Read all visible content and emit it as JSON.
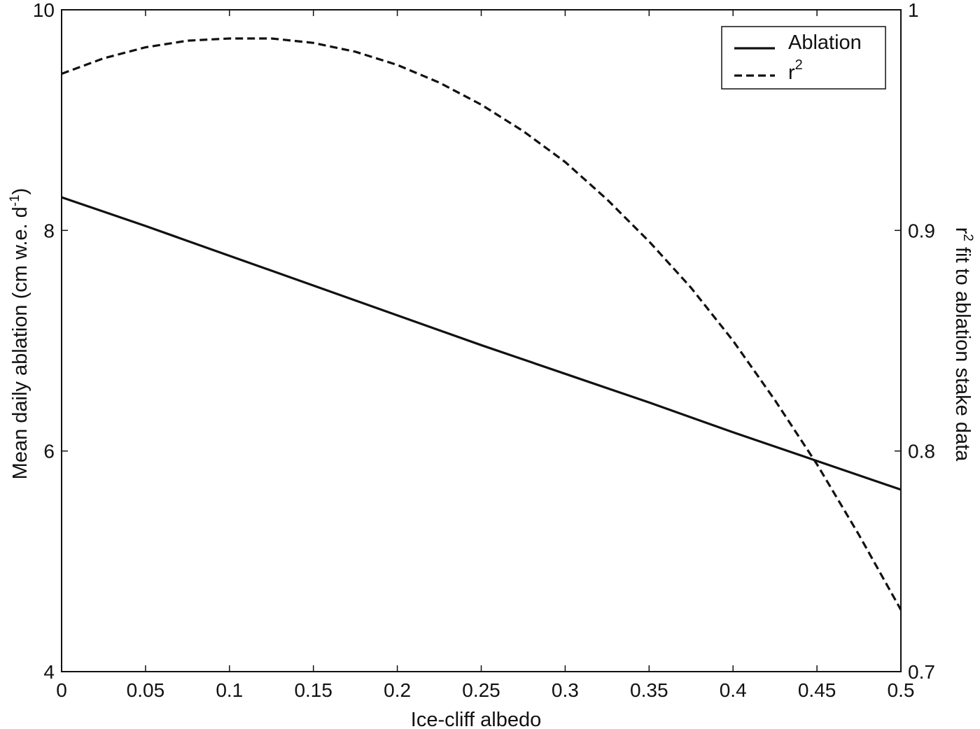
{
  "chart_data": {
    "type": "line",
    "title": "",
    "xlabel": "Ice-cliff albedo",
    "ylabel_left": {
      "text": "Mean daily ablation (cm w.e. d",
      "superscript": "-1",
      "suffix": ")"
    },
    "ylabel_right": {
      "prefix": "r",
      "superscript": "2",
      "text": " fit to ablation stake data"
    },
    "xlim": [
      0,
      0.5
    ],
    "ylim_left": [
      4,
      10
    ],
    "ylim_right": [
      0.7,
      1
    ],
    "x_ticks": [
      "0",
      "0.05",
      "0.1",
      "0.15",
      "0.2",
      "0.25",
      "0.3",
      "0.35",
      "0.4",
      "0.45",
      "0.5"
    ],
    "y_left_ticks": [
      "4",
      "6",
      "8",
      "10"
    ],
    "y_right_ticks": [
      "0.7",
      "0.8",
      "0.9",
      "1"
    ],
    "grid": false,
    "legend_position": "top-right",
    "series": [
      {
        "name": "Ablation",
        "axis": "left",
        "style": "solid",
        "color": "#111111",
        "x": [
          0,
          0.05,
          0.1,
          0.15,
          0.2,
          0.25,
          0.3,
          0.35,
          0.4,
          0.45,
          0.5
        ],
        "y": [
          8.3,
          8.04,
          7.77,
          7.5,
          7.23,
          6.96,
          6.7,
          6.44,
          6.17,
          5.91,
          5.65
        ]
      },
      {
        "name": "r",
        "name_superscript": "2",
        "axis": "right",
        "style": "dashed",
        "color": "#111111",
        "x": [
          0,
          0.025,
          0.05,
          0.075,
          0.1,
          0.125,
          0.15,
          0.175,
          0.2,
          0.225,
          0.25,
          0.275,
          0.3,
          0.325,
          0.35,
          0.375,
          0.4,
          0.425,
          0.45,
          0.475,
          0.5
        ],
        "y": [
          0.971,
          0.978,
          0.983,
          0.986,
          0.987,
          0.987,
          0.985,
          0.981,
          0.975,
          0.967,
          0.957,
          0.945,
          0.931,
          0.914,
          0.895,
          0.874,
          0.85,
          0.823,
          0.794,
          0.762,
          0.728
        ]
      }
    ]
  }
}
